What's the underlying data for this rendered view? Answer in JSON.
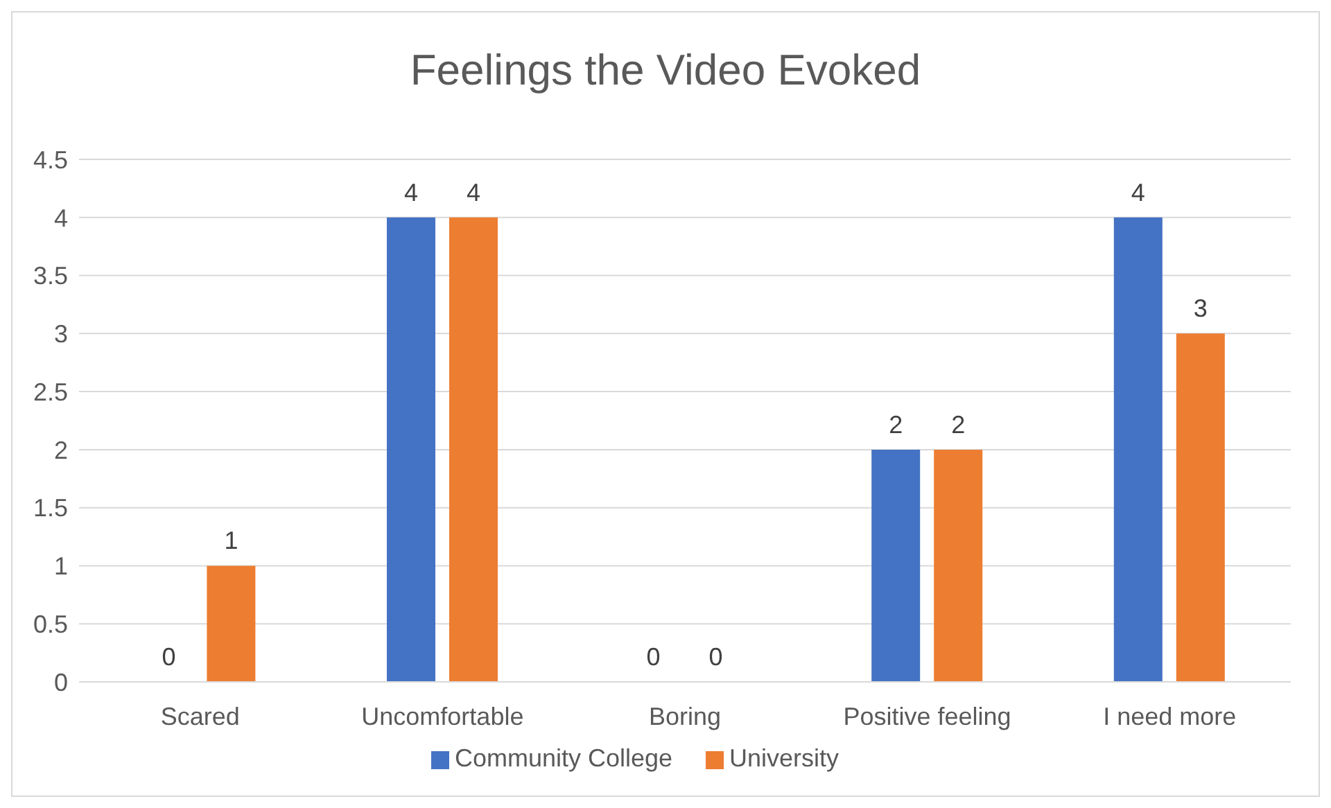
{
  "chart_data": {
    "type": "bar",
    "title": "Feelings the Video Evoked",
    "categories": [
      "Scared",
      "Uncomfortable",
      "Boring",
      "Positive feeling",
      "I need more"
    ],
    "series": [
      {
        "name": "Community College",
        "color": "#4472c4",
        "values": [
          0,
          4,
          0,
          2,
          4
        ]
      },
      {
        "name": "University",
        "color": "#ed7d31",
        "values": [
          1,
          4,
          0,
          2,
          3
        ]
      }
    ],
    "ylim": [
      0,
      4.5
    ],
    "yticks": [
      0,
      0.5,
      1,
      1.5,
      2,
      2.5,
      3,
      3.5,
      4,
      4.5
    ],
    "grid": "y",
    "legend": "bottom",
    "data_labels": true
  }
}
